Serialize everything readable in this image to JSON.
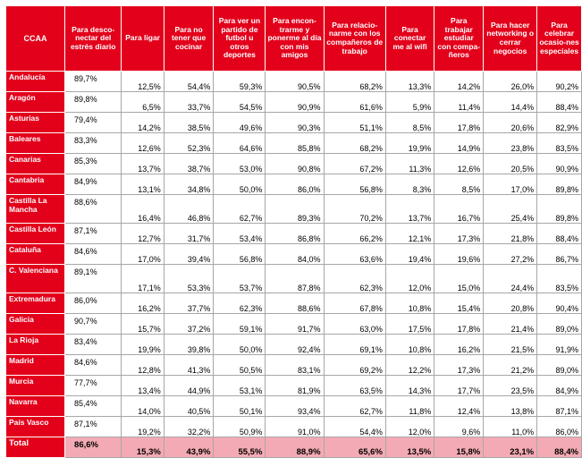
{
  "headers": [
    "CCAA",
    "Para desco-nectar del estrés diario",
    "Para ligar",
    "Para no tener que cocinar",
    "Para ver un partido de futbol u otros deportes",
    "Para encon-trarme y ponerme al día con mis amigos",
    "Para relacio-narme con los compañeros de trabajo",
    "Para conectar me al wifi",
    "Para trabajar estudiar con compa-ñeros",
    "Para hacer networking o cerrar negocios",
    "Para celebrar ocasio-nes especiales"
  ],
  "rows": [
    {
      "region": "Andalucía",
      "values": [
        "89,7%",
        "12,5%",
        "54,4%",
        "59,3%",
        "90,5%",
        "68,2%",
        "13,3%",
        "14,2%",
        "26,0%",
        "90,2%"
      ]
    },
    {
      "region": "Aragón",
      "values": [
        "89,8%",
        "6,5%",
        "33,7%",
        "54,5%",
        "90,9%",
        "61,6%",
        "5,9%",
        "11,4%",
        "14,4%",
        "88,4%"
      ]
    },
    {
      "region": "Asturias",
      "values": [
        "79,4%",
        "14,2%",
        "38,5%",
        "49,6%",
        "90,3%",
        "51,1%",
        "8,5%",
        "17,8%",
        "20,6%",
        "82,9%"
      ]
    },
    {
      "region": "Baleares",
      "values": [
        "83,3%",
        "12,6%",
        "52,3%",
        "64,6%",
        "85,8%",
        "68,2%",
        "19,9%",
        "14,9%",
        "23,8%",
        "83,5%"
      ]
    },
    {
      "region": "Canarias",
      "values": [
        "85,3%",
        "13,7%",
        "38,7%",
        "53,0%",
        "90,8%",
        "67,2%",
        "11,3%",
        "12,6%",
        "20,5%",
        "90,9%"
      ]
    },
    {
      "region": "Cantabria",
      "values": [
        "84,9%",
        "13,1%",
        "34,8%",
        "50,0%",
        "86,0%",
        "56,8%",
        "8,3%",
        "8,5%",
        "17,0%",
        "89,8%"
      ]
    },
    {
      "region": "Castilla La Mancha",
      "values": [
        "88,6%",
        "16,4%",
        "46,8%",
        "62,7%",
        "89,3%",
        "70,2%",
        "13,7%",
        "16,7%",
        "25,4%",
        "89,8%"
      ]
    },
    {
      "region": "Castilla León",
      "values": [
        "87,1%",
        "12,7%",
        "31,7%",
        "53,4%",
        "86,8%",
        "66,2%",
        "12,1%",
        "17,3%",
        "21,8%",
        "88,4%"
      ]
    },
    {
      "region": "Cataluña",
      "values": [
        "84,6%",
        "17,0%",
        "39,4%",
        "56,8%",
        "84,0%",
        "63,6%",
        "19,4%",
        "19,6%",
        "27,2%",
        "86,7%"
      ]
    },
    {
      "region": "C. Valenciana",
      "values": [
        "89,1%",
        "17,1%",
        "53,3%",
        "53,7%",
        "87,8%",
        "62,3%",
        "12,0%",
        "15,0%",
        "24,4%",
        "83,5%"
      ]
    },
    {
      "region": "Extremadura",
      "values": [
        "86,0%",
        "16,2%",
        "37,7%",
        "62,3%",
        "88,6%",
        "67,8%",
        "10,8%",
        "15,4%",
        "20,8%",
        "90,4%"
      ]
    },
    {
      "region": "Galicia",
      "values": [
        "90,7%",
        "15,7%",
        "37,2%",
        "59,1%",
        "91,7%",
        "63,0%",
        "17,5%",
        "17,8%",
        "21,4%",
        "89,0%"
      ]
    },
    {
      "region": "La Rioja",
      "values": [
        "83,4%",
        "19,9%",
        "39,8%",
        "50,0%",
        "92,4%",
        "69,1%",
        "10,8%",
        "16,2%",
        "21,5%",
        "91,9%"
      ]
    },
    {
      "region": "Madrid",
      "values": [
        "84,6%",
        "12,8%",
        "41,3%",
        "50,5%",
        "83,1%",
        "69,2%",
        "12,2%",
        "17,3%",
        "21,2%",
        "89,0%"
      ]
    },
    {
      "region": "Murcia",
      "values": [
        "77,7%",
        "13,4%",
        "44,9%",
        "53,1%",
        "81,9%",
        "63,5%",
        "14,3%",
        "17,7%",
        "23,5%",
        "84,9%"
      ]
    },
    {
      "region": "Navarra",
      "values": [
        "85,4%",
        "14,0%",
        "40,5%",
        "50,1%",
        "93,4%",
        "62,7%",
        "11,8%",
        "12,4%",
        "13,8%",
        "87,1%"
      ]
    },
    {
      "region": "País Vasco",
      "values": [
        "87,1%",
        "19,2%",
        "32,2%",
        "50,9%",
        "91,0%",
        "54,4%",
        "12,0%",
        "9,6%",
        "11,0%",
        "86,0%"
      ]
    },
    {
      "region": "Total",
      "values": [
        "86,6%",
        "15,3%",
        "43,9%",
        "55,5%",
        "88,9%",
        "65,6%",
        "13,5%",
        "15,8%",
        "23,1%",
        "88,4%"
      ]
    }
  ],
  "colors": {
    "header_red": "#e3001b",
    "total_row_pink": "#f4aab4",
    "grid_gray": "#a7a7a7"
  }
}
